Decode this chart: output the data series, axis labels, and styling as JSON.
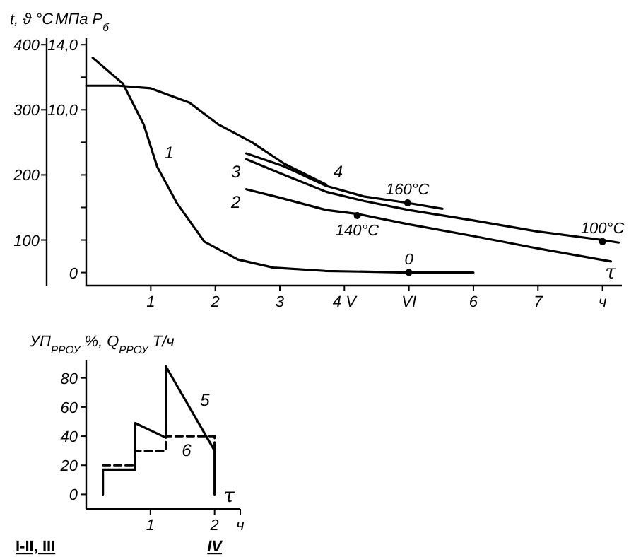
{
  "chart_data": [
    {
      "type": "line",
      "xlabel": "τ",
      "ylabel": "МПа P$_{б}$",
      "y2label": "t, ϑ °C",
      "xlim": [
        0,
        8.3
      ],
      "xticks": [
        1,
        2,
        3,
        {
          "value": 4,
          "label": "4 V"
        },
        {
          "value": 5,
          "label": "VI"
        },
        6,
        7,
        {
          "value": 8,
          "label": "ч"
        }
      ],
      "ylim": [
        -0.8,
        14.4
      ],
      "yticks": [
        0,
        {
          "value": 2,
          "label": null
        },
        {
          "value": 4,
          "label": null
        },
        {
          "value": 6,
          "label": null
        },
        {
          "value": 8,
          "label": null
        },
        {
          "value": 10,
          "label": "10,0"
        },
        {
          "value": 12,
          "label": null
        },
        {
          "value": 14,
          "label": "14,0"
        }
      ],
      "y2lim": [
        30,
        410
      ],
      "y2ticks": [
        100,
        200,
        300,
        400
      ],
      "legend": false,
      "grid": false,
      "marker": "none",
      "series": [
        {
          "name": "1",
          "axis": "y",
          "color": "#000000",
          "x": [
            0.1,
            0.57,
            0.89,
            1.1,
            1.4,
            1.83,
            2.35,
            2.9,
            3.7,
            5,
            6
          ],
          "values": [
            13.2,
            11.6,
            9.1,
            6.5,
            4.3,
            1.9,
            0.8,
            0.3,
            0.1,
            0,
            0
          ]
        },
        {
          "axis": "y2",
          "color": "#000000",
          "x": [
            0,
            0.5,
            1,
            1.6,
            2.04,
            2.57,
            3.07,
            3.72
          ],
          "values": [
            337,
            337,
            333,
            311,
            278,
            250,
            217,
            185
          ]
        },
        {
          "name": "4",
          "axis": "y2",
          "color": "#000000",
          "x": [
            2.48,
            3.07,
            3.72,
            4.3,
            4.98,
            5.52
          ],
          "values": [
            233,
            213,
            183,
            167,
            157,
            148
          ]
        },
        {
          "name": "3",
          "axis": "y2",
          "color": "#000000",
          "x": [
            2.48,
            3.07,
            3.72,
            4.3,
            5,
            6,
            7,
            8,
            8.25
          ],
          "values": [
            224,
            200,
            174,
            160,
            146,
            130,
            113,
            100,
            96
          ]
        },
        {
          "name": "2",
          "axis": "y2",
          "color": "#000000",
          "x": [
            2.48,
            3.0,
            3.72,
            4.2,
            5,
            6,
            7,
            8.13
          ],
          "values": [
            178,
            165,
            146,
            140,
            124,
            106,
            87,
            67
          ]
        }
      ],
      "annotations": [
        {
          "text": "160°C",
          "x": 4.98,
          "y": 4.28
        },
        {
          "text": "140°C",
          "x": 4.2,
          "y": 3.5
        },
        {
          "text": "100°C",
          "x": 8,
          "y": 1.9
        },
        {
          "text": "0",
          "x": 5,
          "y": 0
        }
      ]
    },
    {
      "type": "line",
      "xlabel": "τ",
      "ylabel": "УП$_{РРОУ}$ %, Q$_{РРОУ}$ Т/ч",
      "xlim": [
        0,
        2.4
      ],
      "xticks": [
        1,
        {
          "value": 2,
          "label": "2\nIV"
        },
        {
          "value": 2.4,
          "label": "ч"
        }
      ],
      "ylim": [
        -10,
        92
      ],
      "yticks": [
        0,
        20,
        40,
        60,
        80
      ],
      "legend": false,
      "grid": false,
      "marker": "none",
      "series": [
        {
          "name": "5",
          "color": "#000000",
          "line_style": "solid",
          "x": [
            0.26,
            0.26,
            0.76,
            0.76,
            1.24,
            1.24,
            2.0,
            2.0
          ],
          "values": [
            0,
            17,
            17,
            49,
            39,
            88,
            30,
            0
          ]
        },
        {
          "name": "6",
          "color": "#000000",
          "line_style": "dashed",
          "x": [
            0.26,
            0.76,
            0.76,
            1.24,
            1.24,
            2.0,
            2.0
          ],
          "values": [
            20,
            20,
            30,
            30,
            40,
            40,
            30
          ]
        }
      ],
      "annotations": [
        "I-II, III"
      ]
    }
  ]
}
